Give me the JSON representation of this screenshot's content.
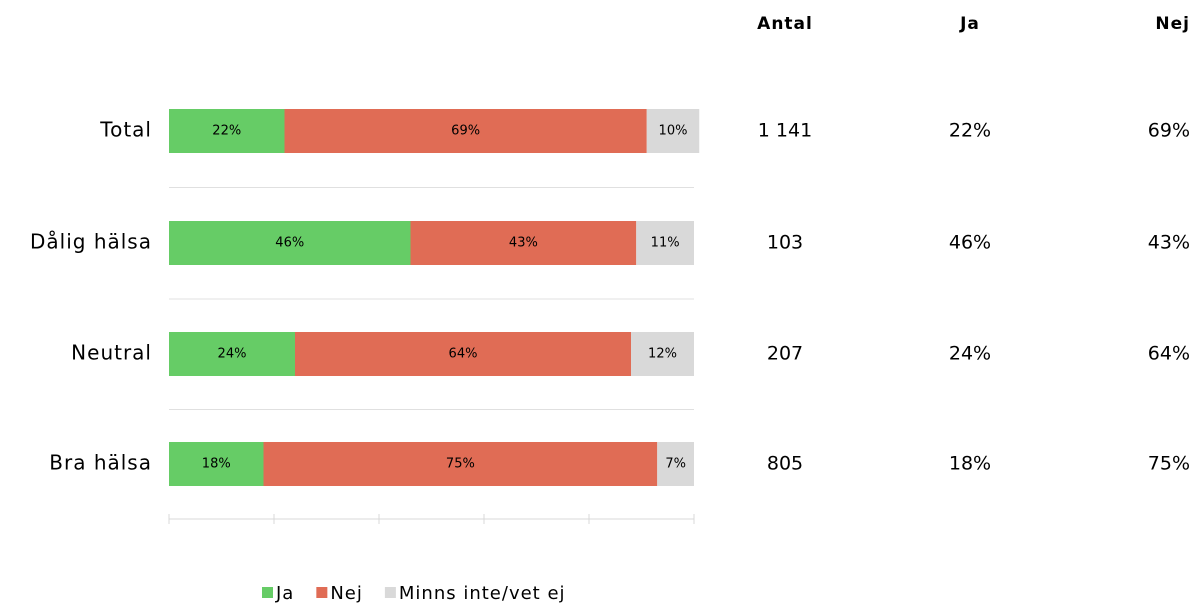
{
  "chart_data": {
    "type": "bar",
    "orientation": "horizontal",
    "stacked": true,
    "categories": [
      "Total",
      "Dålig hälsa",
      "Neutral",
      "Bra hälsa"
    ],
    "series": [
      {
        "name": "Ja",
        "color": "#66cc66",
        "values": [
          22,
          46,
          24,
          18
        ],
        "value_labels": [
          "22%",
          "46%",
          "24%",
          "18%"
        ]
      },
      {
        "name": "Nej",
        "color": "#e06c55",
        "values": [
          69,
          43,
          64,
          75
        ],
        "value_labels": [
          "69%",
          "43%",
          "64%",
          "75%"
        ]
      },
      {
        "name": "Minns inte/vet ej",
        "color": "#d9d9d9",
        "values": [
          10,
          11,
          12,
          7
        ],
        "value_labels": [
          "10%",
          "11%",
          "12%",
          "7%"
        ]
      }
    ],
    "xlim": [
      0,
      100
    ],
    "xticks": [
      0,
      20,
      40,
      60,
      80,
      100
    ],
    "legend": "bottom"
  },
  "table": {
    "header": [
      "Antal",
      "Ja",
      "Nej"
    ],
    "rows": [
      [
        "1 141",
        "22%",
        "69%"
      ],
      [
        "103",
        "46%",
        "43%"
      ],
      [
        "207",
        "24%",
        "64%"
      ],
      [
        "805",
        "18%",
        "75%"
      ]
    ],
    "colors": [
      [
        "#000000",
        "#000000",
        "#000000"
      ],
      [
        "#000000",
        "#6f9fd0",
        "#c00000"
      ],
      [
        "#000000",
        "#000000",
        "#000000"
      ],
      [
        "#000000",
        "#c00000",
        "#6f9fd0"
      ]
    ]
  }
}
